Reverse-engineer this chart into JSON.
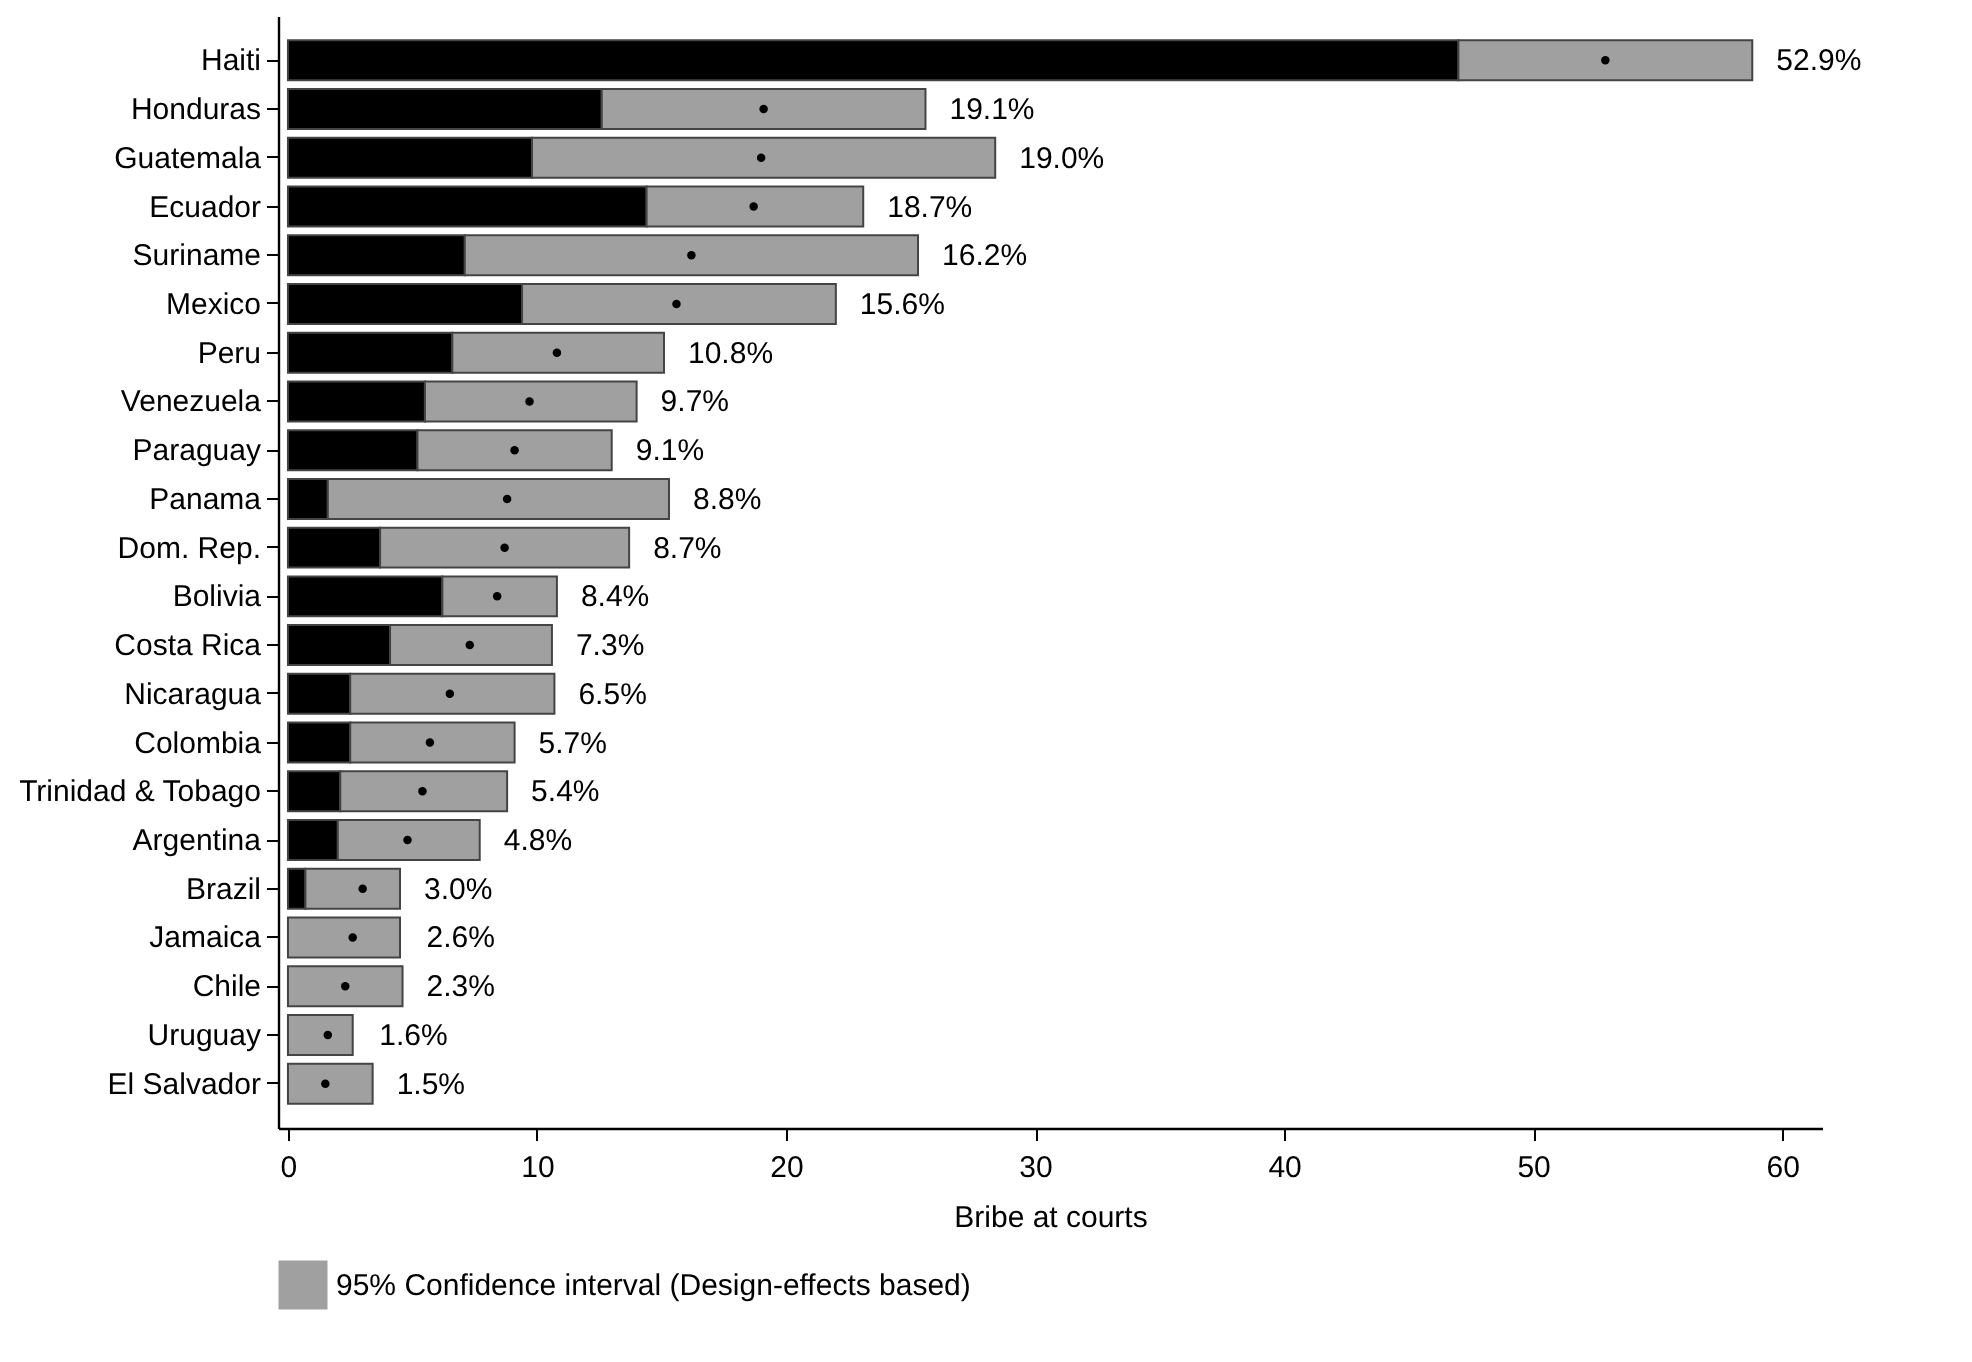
{
  "chart_data": {
    "type": "bar",
    "orientation": "horizontal",
    "stacked": true,
    "xlabel": "Bribe at courts",
    "legend": "bottom",
    "marker": "circle",
    "grid": false,
    "categories": [
      "Haiti",
      "Honduras",
      "Guatemala",
      "Ecuador",
      "Suriname",
      "Mexico",
      "Peru",
      "Venezuela",
      "Paraguay",
      "Panama",
      "Dom. Rep.",
      "Bolivia",
      "Costa Rica",
      "Nicaragua",
      "Colombia",
      "Trinidad & Tobago",
      "Argentina",
      "Brazil",
      "Jamaica",
      "Chile",
      "Uruguay",
      "El Salvador"
    ],
    "xlim": [
      -0.4,
      61.6
    ],
    "xticks": [
      0,
      10,
      20,
      30,
      40,
      50,
      60
    ],
    "series": [
      {
        "color": "#000000",
        "values": [
          47.0,
          12.6,
          9.8,
          14.4,
          7.1,
          9.4,
          6.6,
          5.5,
          5.2,
          1.6,
          3.7,
          6.2,
          4.1,
          2.5,
          2.5,
          2.1,
          2.0,
          0.7,
          null,
          null,
          null,
          null
        ]
      },
      {
        "name": "95% Confidence interval (Design-effects based)",
        "color": "#a0a0a0",
        "values": [
          11.8,
          13.0,
          18.6,
          8.7,
          18.2,
          12.6,
          8.5,
          8.5,
          7.8,
          13.7,
          10.0,
          4.6,
          6.5,
          8.2,
          6.6,
          6.7,
          5.7,
          3.8,
          4.5,
          4.6,
          2.6,
          3.4
        ]
      },
      {
        "type": "scatter",
        "color": "#000000",
        "values": [
          52.9,
          19.1,
          19.0,
          18.7,
          16.2,
          15.6,
          10.8,
          9.7,
          9.1,
          8.8,
          8.7,
          8.4,
          7.3,
          6.5,
          5.7,
          5.4,
          4.8,
          3.0,
          2.6,
          2.3,
          1.6,
          1.5
        ]
      }
    ],
    "annotations": [
      {
        "text": "52.9%",
        "x": 58.8,
        "y": "Haiti"
      },
      {
        "text": "19.1%",
        "x": 25.6,
        "y": "Honduras"
      },
      {
        "text": "19.0%",
        "x": 28.4,
        "y": "Guatemala"
      },
      {
        "text": "18.7%",
        "x": 23.1,
        "y": "Ecuador"
      },
      {
        "text": "16.2%",
        "x": 25.3,
        "y": "Suriname"
      },
      {
        "text": "15.6%",
        "x": 22.0,
        "y": "Mexico"
      },
      {
        "text": "10.8%",
        "x": 15.1,
        "y": "Peru"
      },
      {
        "text": "9.7%",
        "x": 14.0,
        "y": "Venezuela"
      },
      {
        "text": "9.1%",
        "x": 13.0,
        "y": "Paraguay"
      },
      {
        "text": "8.8%",
        "x": 15.3,
        "y": "Panama"
      },
      {
        "text": "8.7%",
        "x": 13.7,
        "y": "Dom. Rep."
      },
      {
        "text": "8.4%",
        "x": 10.8,
        "y": "Bolivia"
      },
      {
        "text": "7.3%",
        "x": 10.6,
        "y": "Costa Rica"
      },
      {
        "text": "6.5%",
        "x": 10.7,
        "y": "Nicaragua"
      },
      {
        "text": "5.7%",
        "x": 9.1,
        "y": "Colombia"
      },
      {
        "text": "5.4%",
        "x": 8.8,
        "y": "Trinidad & Tobago"
      },
      {
        "text": "4.8%",
        "x": 7.7,
        "y": "Argentina"
      },
      {
        "text": "3.0%",
        "x": 4.5,
        "y": "Brazil"
      },
      {
        "text": "2.6%",
        "x": 4.6,
        "y": "Jamaica"
      },
      {
        "text": "2.3%",
        "x": 4.6,
        "y": "Chile"
      },
      {
        "text": "1.6%",
        "x": 2.7,
        "y": "Uruguay"
      },
      {
        "text": "1.5%",
        "x": 3.4,
        "y": "El Salvador"
      }
    ]
  }
}
